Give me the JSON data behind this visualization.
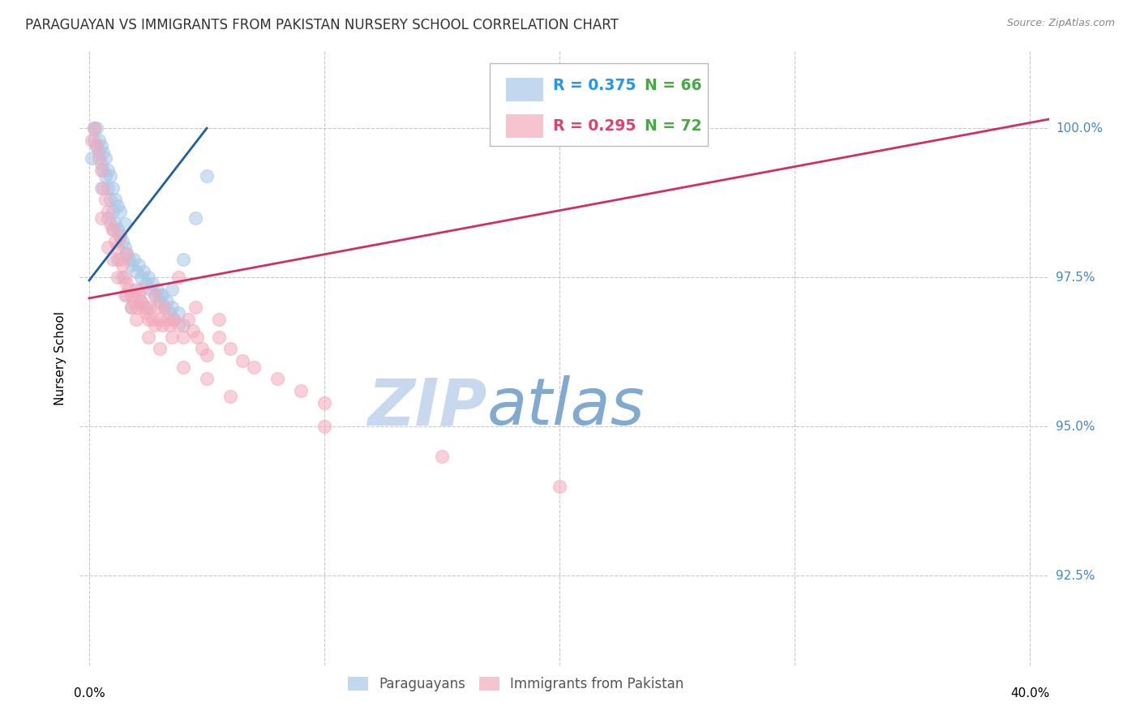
{
  "title": "PARAGUAYAN VS IMMIGRANTS FROM PAKISTAN NURSERY SCHOOL CORRELATION CHART",
  "source": "Source: ZipAtlas.com",
  "ylabel": "Nursery School",
  "ytick_labels": [
    "100.0%",
    "97.5%",
    "95.0%",
    "92.5%"
  ],
  "ytick_values": [
    100.0,
    97.5,
    95.0,
    92.5
  ],
  "ylim": [
    91.0,
    101.3
  ],
  "xlim": [
    -0.004,
    0.408
  ],
  "blue_color": "#a8c8e8",
  "pink_color": "#f4aabb",
  "blue_line_color": "#2060a0",
  "pink_line_color": "#d03060",
  "legend_R_blue": "#2196f3",
  "legend_R_pink": "#e04070",
  "legend_N_color": "#44aa44",
  "watermark_zip_color": "#c8d8ee",
  "watermark_atlas_color": "#80aad0",
  "title_fontsize": 12,
  "axis_label_fontsize": 11,
  "tick_fontsize": 11,
  "blue_x": [
    0.001,
    0.002,
    0.002,
    0.003,
    0.003,
    0.004,
    0.004,
    0.005,
    0.005,
    0.006,
    0.006,
    0.007,
    0.007,
    0.008,
    0.008,
    0.009,
    0.009,
    0.01,
    0.01,
    0.011,
    0.011,
    0.012,
    0.012,
    0.013,
    0.013,
    0.014,
    0.015,
    0.015,
    0.016,
    0.017,
    0.018,
    0.019,
    0.02,
    0.021,
    0.022,
    0.023,
    0.024,
    0.025,
    0.026,
    0.027,
    0.028,
    0.029,
    0.03,
    0.031,
    0.032,
    0.033,
    0.034,
    0.035,
    0.036,
    0.038,
    0.04,
    0.005,
    0.008,
    0.01,
    0.012,
    0.014,
    0.016,
    0.018,
    0.02,
    0.022,
    0.024,
    0.03,
    0.035,
    0.04,
    0.045,
    0.05
  ],
  "blue_y": [
    99.5,
    99.8,
    100.0,
    99.7,
    100.0,
    99.6,
    99.8,
    99.4,
    99.7,
    99.3,
    99.6,
    99.2,
    99.5,
    99.0,
    99.3,
    98.8,
    99.2,
    98.6,
    99.0,
    98.4,
    98.8,
    98.3,
    98.7,
    98.2,
    98.6,
    98.1,
    98.0,
    98.4,
    97.9,
    97.8,
    97.7,
    97.8,
    97.6,
    97.7,
    97.5,
    97.6,
    97.4,
    97.5,
    97.3,
    97.4,
    97.2,
    97.3,
    97.1,
    97.2,
    97.0,
    97.1,
    96.9,
    97.0,
    96.8,
    96.9,
    96.7,
    99.0,
    98.5,
    98.3,
    97.8,
    97.5,
    97.2,
    97.0,
    97.3,
    97.1,
    97.0,
    97.2,
    97.3,
    97.8,
    98.5,
    99.2
  ],
  "pink_x": [
    0.001,
    0.002,
    0.003,
    0.004,
    0.005,
    0.006,
    0.007,
    0.008,
    0.009,
    0.01,
    0.011,
    0.012,
    0.013,
    0.014,
    0.015,
    0.016,
    0.017,
    0.018,
    0.019,
    0.02,
    0.021,
    0.022,
    0.023,
    0.024,
    0.025,
    0.026,
    0.027,
    0.028,
    0.029,
    0.03,
    0.031,
    0.032,
    0.033,
    0.034,
    0.035,
    0.036,
    0.038,
    0.04,
    0.042,
    0.044,
    0.046,
    0.048,
    0.05,
    0.055,
    0.06,
    0.065,
    0.07,
    0.08,
    0.09,
    0.1,
    0.005,
    0.008,
    0.01,
    0.012,
    0.015,
    0.018,
    0.02,
    0.025,
    0.03,
    0.04,
    0.05,
    0.06,
    0.1,
    0.15,
    0.2,
    0.038,
    0.045,
    0.055,
    0.028,
    0.022,
    0.013,
    0.016
  ],
  "pink_y": [
    99.8,
    100.0,
    99.7,
    99.5,
    99.3,
    99.0,
    98.8,
    98.6,
    98.4,
    98.3,
    98.1,
    98.0,
    97.8,
    97.7,
    97.5,
    97.4,
    97.3,
    97.2,
    97.1,
    97.0,
    97.2,
    97.1,
    97.0,
    96.9,
    96.8,
    97.0,
    96.8,
    96.7,
    97.0,
    96.8,
    96.7,
    97.0,
    96.8,
    96.7,
    96.5,
    96.8,
    96.7,
    96.5,
    96.8,
    96.6,
    96.5,
    96.3,
    96.2,
    96.5,
    96.3,
    96.1,
    96.0,
    95.8,
    95.6,
    95.4,
    98.5,
    98.0,
    97.8,
    97.5,
    97.2,
    97.0,
    96.8,
    96.5,
    96.3,
    96.0,
    95.8,
    95.5,
    95.0,
    94.5,
    94.0,
    97.5,
    97.0,
    96.8,
    97.2,
    97.3,
    98.2,
    97.9
  ],
  "blue_line_x0": 0.0,
  "blue_line_y0": 97.45,
  "blue_line_x1": 0.05,
  "blue_line_y1": 100.0,
  "pink_line_x0": 0.0,
  "pink_line_y0": 97.15,
  "pink_line_x1": 0.408,
  "pink_line_y1": 100.15
}
